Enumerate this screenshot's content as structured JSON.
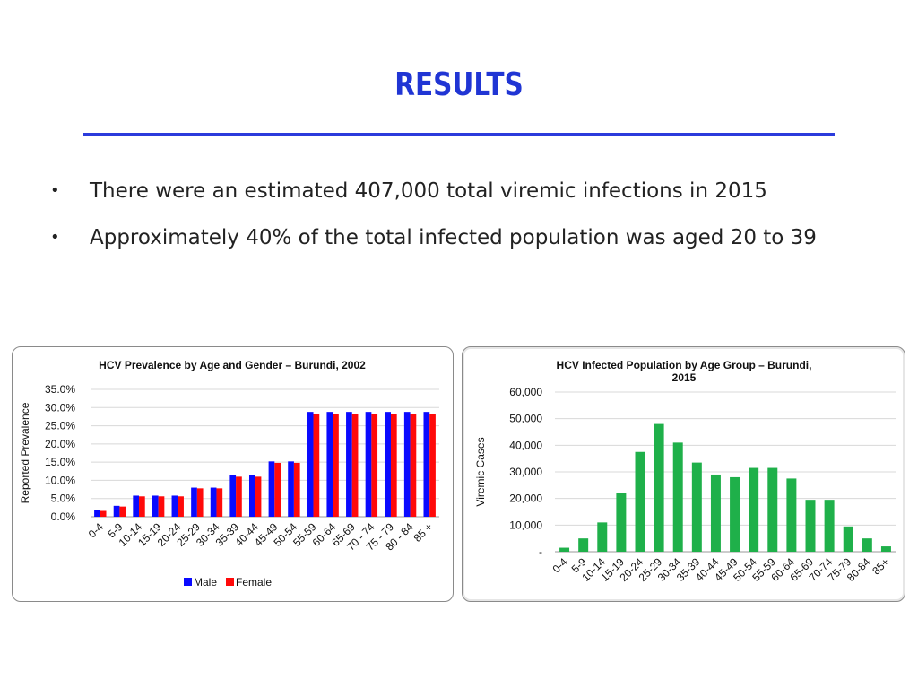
{
  "slide": {
    "title": "RESULTS",
    "bullets": [
      "There were an estimated 407,000 total viremic infections in 2015",
      "Approximately 40% of the total infected population was aged 20 to 39"
    ],
    "bullet_symbol": "•",
    "title_color": "#2035d4"
  },
  "chart_data": [
    {
      "type": "bar",
      "title": "HCV Prevalence by Age and Gender – Burundi, 2002",
      "xlabel": "",
      "ylabel": "Reported Prevalence",
      "categories": [
        "0-4",
        "5-9",
        "10-14",
        "15-19",
        "20-24",
        "25-29",
        "30-34",
        "35-39",
        "40-44",
        "45-49",
        "50-54",
        "55-59",
        "60-64",
        "65-69",
        "70 - 74",
        "75 - 79",
        "80 - 84",
        "85 +"
      ],
      "series": [
        {
          "name": "Male",
          "color": "#0a0aff",
          "values": [
            1.8,
            3.0,
            5.8,
            5.8,
            5.8,
            8.0,
            8.0,
            11.4,
            11.4,
            15.2,
            15.2,
            28.8,
            28.8,
            28.8,
            28.8,
            28.8,
            28.8,
            28.8
          ]
        },
        {
          "name": "Female",
          "color": "#ff0a0a",
          "values": [
            1.6,
            2.8,
            5.6,
            5.6,
            5.6,
            7.8,
            7.8,
            11.0,
            11.0,
            14.8,
            14.8,
            28.2,
            28.2,
            28.2,
            28.2,
            28.2,
            28.2,
            28.2
          ]
        }
      ],
      "ylim": [
        0,
        35
      ],
      "yticks": [
        "35.0%",
        "30.0%",
        "25.0%",
        "20.0%",
        "15.0%",
        "10.0%",
        "5.0%",
        "0.0%"
      ],
      "grid": true,
      "legend": "bottom"
    },
    {
      "type": "bar",
      "title": "HCV Infected Population by Age Group – Burundi, 2015",
      "xlabel": "",
      "ylabel": "Viremic Cases",
      "categories": [
        "0-4",
        "5-9",
        "10-14",
        "15-19",
        "20-24",
        "25-29",
        "30-34",
        "35-39",
        "40-44",
        "45-49",
        "50-54",
        "55-59",
        "60-64",
        "65-69",
        "70-74",
        "75-79",
        "80-84",
        "85+"
      ],
      "series": [
        {
          "color": "#1fb04a",
          "values": [
            1500,
            5000,
            11000,
            22000,
            37500,
            48000,
            41000,
            33500,
            29000,
            28000,
            31500,
            31500,
            27500,
            19500,
            19500,
            9500,
            5000,
            2000
          ]
        }
      ],
      "ylim": [
        0,
        60000
      ],
      "yticks": [
        "60,000",
        "50,000",
        "40,000",
        "30,000",
        "20,000",
        "10,000",
        "-"
      ],
      "grid": true,
      "legend": "none"
    }
  ]
}
